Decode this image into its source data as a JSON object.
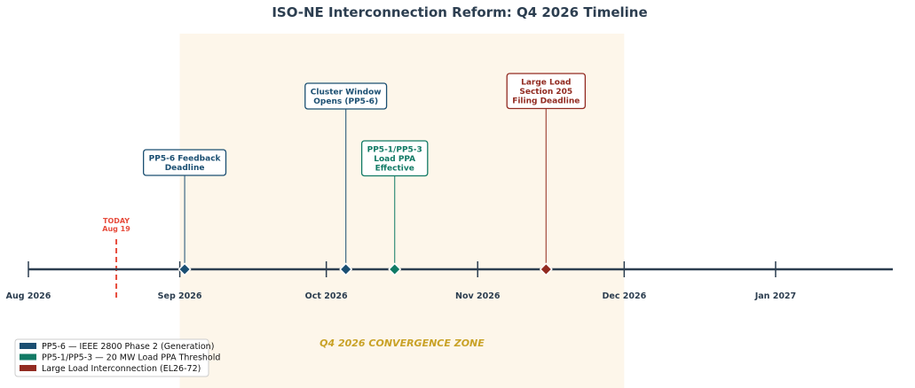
{
  "chart_data": {
    "type": "timeline",
    "title": "ISO-NE Interconnection Reform: Q4 2026 Timeline",
    "x_range": [
      "2026-08-01",
      "2027-01-25"
    ],
    "ticks": [
      {
        "date": "2026-08-01",
        "label": "Aug 2026"
      },
      {
        "date": "2026-09-01",
        "label": "Sep 2026"
      },
      {
        "date": "2026-10-01",
        "label": "Oct 2026"
      },
      {
        "date": "2026-11-01",
        "label": "Nov 2026"
      },
      {
        "date": "2026-12-01",
        "label": "Dec 2026"
      },
      {
        "date": "2027-01-01",
        "label": "Jan 2027"
      }
    ],
    "today": {
      "date": "2026-08-19",
      "line1": "TODAY",
      "line2": "Aug 19",
      "color": "#e74c3c"
    },
    "zone": {
      "start": "2026-09-01",
      "end": "2026-12-01",
      "label": "Q4 2026 CONVERGENCE ZONE",
      "color": "#fdf6ea"
    },
    "series": [
      {
        "name": "PP5-6 — IEEE 2800 Phase 2 (Generation)",
        "color": "#1b4f72"
      },
      {
        "name": "PP5-1/PP5-3 — 20 MW Load PPA Threshold",
        "color": "#117a65"
      },
      {
        "name": "Large Load Interconnection (EL26-72)",
        "color": "#922b21"
      }
    ],
    "events": [
      {
        "date": "2026-09-02",
        "series": 0,
        "lines": [
          "PP5-6 Feedback",
          "Deadline"
        ],
        "level": 2
      },
      {
        "date": "2026-10-05",
        "series": 0,
        "lines": [
          "Cluster Window",
          "Opens (PP5-6)"
        ],
        "level": 3
      },
      {
        "date": "2026-10-15",
        "series": 1,
        "lines": [
          "PP5-1/PP5-3",
          "Load PPA",
          "Effective"
        ],
        "level": 2
      },
      {
        "date": "2026-11-15",
        "series": 2,
        "lines": [
          "Large Load",
          "Section 205",
          "Filing Deadline"
        ],
        "level": 3
      }
    ],
    "legend_position": "bottom-left"
  }
}
